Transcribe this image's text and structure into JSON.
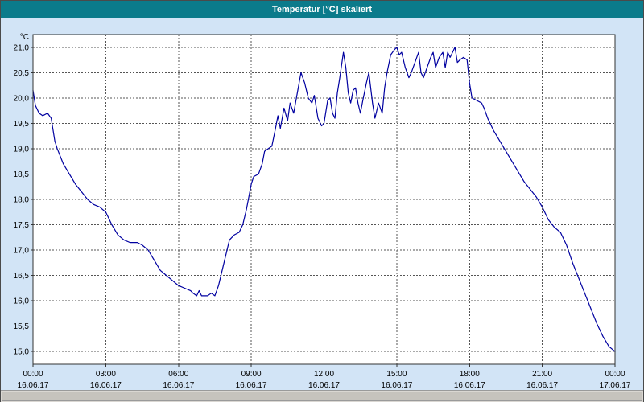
{
  "window": {
    "title": "Temperatur [°C] skaliert"
  },
  "colors": {
    "title_bar": "#0b7b8b",
    "title_text": "#ffffff",
    "background": "#d2e4f6",
    "plot_background": "#ffffff",
    "plot_border": "#333333",
    "grid": "#555555",
    "line": "#0000a0",
    "axis_text": "#000000"
  },
  "chart_data": {
    "type": "line",
    "title": "Temperatur [°C] skaliert",
    "ylabel_unit": "°C",
    "xlabel": "",
    "ylim": [
      15.0,
      21.0
    ],
    "xlim_hours": [
      0,
      24
    ],
    "grid": "dashed",
    "legend": "none",
    "y_ticks": [
      {
        "value": 21.0,
        "label": "21,0"
      },
      {
        "value": 20.5,
        "label": "20,5"
      },
      {
        "value": 20.0,
        "label": "20,0"
      },
      {
        "value": 19.5,
        "label": "19,5"
      },
      {
        "value": 19.0,
        "label": "19,0"
      },
      {
        "value": 18.5,
        "label": "18,5"
      },
      {
        "value": 18.0,
        "label": "18,0"
      },
      {
        "value": 17.5,
        "label": "17,5"
      },
      {
        "value": 17.0,
        "label": "17,0"
      },
      {
        "value": 16.5,
        "label": "16,5"
      },
      {
        "value": 16.0,
        "label": "16,0"
      },
      {
        "value": 15.5,
        "label": "15,5"
      },
      {
        "value": 15.0,
        "label": "15,0"
      }
    ],
    "x_ticks": [
      {
        "hour": 0,
        "time": "00:00",
        "date": "16.06.17"
      },
      {
        "hour": 3,
        "time": "03:00",
        "date": "16.06.17"
      },
      {
        "hour": 6,
        "time": "06:00",
        "date": "16.06.17"
      },
      {
        "hour": 9,
        "time": "09:00",
        "date": "16.06.17"
      },
      {
        "hour": 12,
        "time": "12:00",
        "date": "16.06.17"
      },
      {
        "hour": 15,
        "time": "15:00",
        "date": "16.06.17"
      },
      {
        "hour": 18,
        "time": "18:00",
        "date": "16.06.17"
      },
      {
        "hour": 21,
        "time": "21:00",
        "date": "16.06.17"
      },
      {
        "hour": 24,
        "time": "00:00",
        "date": "17.06.17"
      }
    ],
    "series": [
      {
        "name": "Temperatur",
        "color": "#0000a0",
        "points": [
          [
            0,
            20.15
          ],
          [
            0.1,
            19.85
          ],
          [
            0.25,
            19.7
          ],
          [
            0.4,
            19.65
          ],
          [
            0.6,
            19.7
          ],
          [
            0.75,
            19.6
          ],
          [
            0.9,
            19.15
          ],
          [
            1,
            19.0
          ],
          [
            1.25,
            18.7
          ],
          [
            1.5,
            18.5
          ],
          [
            1.75,
            18.3
          ],
          [
            2,
            18.15
          ],
          [
            2.25,
            18.0
          ],
          [
            2.5,
            17.9
          ],
          [
            2.75,
            17.85
          ],
          [
            3,
            17.75
          ],
          [
            3.25,
            17.5
          ],
          [
            3.5,
            17.3
          ],
          [
            3.75,
            17.2
          ],
          [
            4,
            17.15
          ],
          [
            4.3,
            17.15
          ],
          [
            4.5,
            17.1
          ],
          [
            4.75,
            17.0
          ],
          [
            5,
            16.8
          ],
          [
            5.25,
            16.6
          ],
          [
            5.5,
            16.5
          ],
          [
            5.75,
            16.4
          ],
          [
            6,
            16.3
          ],
          [
            6.25,
            16.25
          ],
          [
            6.5,
            16.2
          ],
          [
            6.6,
            16.15
          ],
          [
            6.75,
            16.1
          ],
          [
            6.85,
            16.2
          ],
          [
            6.95,
            16.1
          ],
          [
            7.2,
            16.1
          ],
          [
            7.35,
            16.15
          ],
          [
            7.5,
            16.1
          ],
          [
            7.65,
            16.3
          ],
          [
            7.8,
            16.6
          ],
          [
            8,
            17.0
          ],
          [
            8.1,
            17.2
          ],
          [
            8.3,
            17.3
          ],
          [
            8.5,
            17.35
          ],
          [
            8.65,
            17.5
          ],
          [
            8.8,
            17.8
          ],
          [
            9,
            18.3
          ],
          [
            9.1,
            18.45
          ],
          [
            9.3,
            18.5
          ],
          [
            9.45,
            18.7
          ],
          [
            9.55,
            18.95
          ],
          [
            9.7,
            19.0
          ],
          [
            9.85,
            19.05
          ],
          [
            10,
            19.4
          ],
          [
            10.1,
            19.65
          ],
          [
            10.2,
            19.4
          ],
          [
            10.35,
            19.8
          ],
          [
            10.5,
            19.55
          ],
          [
            10.6,
            19.9
          ],
          [
            10.75,
            19.7
          ],
          [
            10.9,
            20.1
          ],
          [
            11.05,
            20.5
          ],
          [
            11.2,
            20.3
          ],
          [
            11.35,
            20.0
          ],
          [
            11.5,
            19.9
          ],
          [
            11.6,
            20.05
          ],
          [
            11.75,
            19.6
          ],
          [
            11.9,
            19.45
          ],
          [
            12,
            19.5
          ],
          [
            12.15,
            19.95
          ],
          [
            12.25,
            20.0
          ],
          [
            12.35,
            19.7
          ],
          [
            12.45,
            19.6
          ],
          [
            12.55,
            20.1
          ],
          [
            12.65,
            20.4
          ],
          [
            12.8,
            20.9
          ],
          [
            12.9,
            20.6
          ],
          [
            13,
            20.1
          ],
          [
            13.1,
            19.9
          ],
          [
            13.2,
            20.15
          ],
          [
            13.3,
            20.2
          ],
          [
            13.4,
            19.9
          ],
          [
            13.5,
            19.7
          ],
          [
            13.6,
            19.95
          ],
          [
            13.75,
            20.3
          ],
          [
            13.85,
            20.5
          ],
          [
            14,
            19.9
          ],
          [
            14.1,
            19.6
          ],
          [
            14.25,
            19.9
          ],
          [
            14.4,
            19.7
          ],
          [
            14.5,
            20.2
          ],
          [
            14.6,
            20.5
          ],
          [
            14.75,
            20.85
          ],
          [
            14.9,
            20.95
          ],
          [
            15,
            21.0
          ],
          [
            15.1,
            20.85
          ],
          [
            15.2,
            20.9
          ],
          [
            15.35,
            20.6
          ],
          [
            15.5,
            20.4
          ],
          [
            15.6,
            20.5
          ],
          [
            15.75,
            20.7
          ],
          [
            15.9,
            20.9
          ],
          [
            16,
            20.5
          ],
          [
            16.1,
            20.4
          ],
          [
            16.25,
            20.6
          ],
          [
            16.4,
            20.8
          ],
          [
            16.5,
            20.9
          ],
          [
            16.6,
            20.6
          ],
          [
            16.75,
            20.8
          ],
          [
            16.9,
            20.9
          ],
          [
            17,
            20.6
          ],
          [
            17.1,
            20.9
          ],
          [
            17.2,
            20.8
          ],
          [
            17.3,
            20.9
          ],
          [
            17.4,
            21.0
          ],
          [
            17.5,
            20.7
          ],
          [
            17.6,
            20.75
          ],
          [
            17.75,
            20.8
          ],
          [
            17.9,
            20.75
          ],
          [
            18,
            20.3
          ],
          [
            18.1,
            20.0
          ],
          [
            18.3,
            19.95
          ],
          [
            18.5,
            19.9
          ],
          [
            18.6,
            19.8
          ],
          [
            18.75,
            19.6
          ],
          [
            19,
            19.35
          ],
          [
            19.25,
            19.15
          ],
          [
            19.5,
            18.95
          ],
          [
            19.75,
            18.75
          ],
          [
            20,
            18.55
          ],
          [
            20.25,
            18.35
          ],
          [
            20.5,
            18.2
          ],
          [
            20.75,
            18.05
          ],
          [
            21,
            17.85
          ],
          [
            21.25,
            17.6
          ],
          [
            21.5,
            17.45
          ],
          [
            21.75,
            17.35
          ],
          [
            22,
            17.1
          ],
          [
            22.25,
            16.75
          ],
          [
            22.5,
            16.45
          ],
          [
            22.75,
            16.15
          ],
          [
            23,
            15.85
          ],
          [
            23.25,
            15.55
          ],
          [
            23.5,
            15.3
          ],
          [
            23.75,
            15.1
          ],
          [
            24,
            15.0
          ]
        ]
      }
    ]
  },
  "scrollbar": {
    "orientation": "horizontal"
  }
}
